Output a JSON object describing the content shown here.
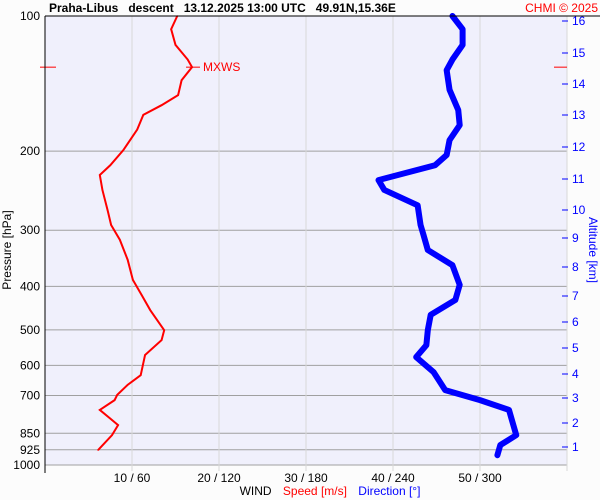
{
  "chart_data": {
    "type": "line",
    "title": "Praha-Libus   descent   13.12.2025 13:00 UTC   49.91N,15.36E",
    "copyright": "CHMI © 2025",
    "ylabel": "Pressure [hPa]",
    "y2label": "Altitude [km]",
    "xlabel_parts": [
      {
        "text": "WIND",
        "color": "#000000"
      },
      {
        "text": "Speed [m/s]",
        "color": "#ff0000"
      },
      {
        "text": "Direction [°]",
        "color": "#0000ff"
      }
    ],
    "yscale": "log",
    "ylim": [
      1000,
      100
    ],
    "xlim_speed": [
      0,
      60
    ],
    "xlim_direction": [
      0,
      360
    ],
    "y_ticks": [
      100,
      200,
      300,
      400,
      500,
      600,
      700,
      850,
      925,
      1000
    ],
    "x_ticks": [
      "10 / 60",
      "20 / 120",
      "30 / 180",
      "40 / 240",
      "50 / 300"
    ],
    "x_tick_speeds": [
      10,
      20,
      30,
      40,
      50
    ],
    "altitude_ticks": [
      "16",
      "15",
      "14",
      "13",
      "12",
      "11",
      "10",
      "9",
      "8",
      "7",
      "6",
      "5",
      "4",
      "3",
      "2",
      "1"
    ],
    "grid": true,
    "colors": {
      "background": "#f0f0fc",
      "speed": "#ff0000",
      "direction": "#0000ff",
      "grid": "#a0a0a0"
    },
    "annotation": {
      "text": "MXWS",
      "pressure": 130,
      "speed": 16.9
    },
    "series": [
      {
        "name": "Speed [m/s]",
        "color": "#ff0000",
        "points": [
          [
            100,
            15.2
          ],
          [
            107,
            14.5
          ],
          [
            116,
            15.0
          ],
          [
            125,
            16.4
          ],
          [
            130,
            16.9
          ],
          [
            139,
            15.7
          ],
          [
            150,
            15.3
          ],
          [
            158,
            13.4
          ],
          [
            166,
            11.3
          ],
          [
            179,
            10.6
          ],
          [
            199,
            9.0
          ],
          [
            215,
            7.5
          ],
          [
            226,
            6.3
          ],
          [
            244,
            6.6
          ],
          [
            271,
            7.2
          ],
          [
            292,
            7.6
          ],
          [
            315,
            8.6
          ],
          [
            349,
            9.5
          ],
          [
            387,
            10.1
          ],
          [
            418,
            11.1
          ],
          [
            452,
            12.1
          ],
          [
            501,
            13.7
          ],
          [
            527,
            13.4
          ],
          [
            569,
            11.5
          ],
          [
            631,
            11.0
          ],
          [
            663,
            9.5
          ],
          [
            698,
            8.3
          ],
          [
            717,
            8.0
          ],
          [
            754,
            6.3
          ],
          [
            794,
            7.7
          ],
          [
            815,
            8.4
          ],
          [
            858,
            7.7
          ],
          [
            926,
            6.1
          ]
        ]
      },
      {
        "name": "Direction [°]",
        "color": "#0000ff",
        "points": [
          [
            100,
            281
          ],
          [
            107,
            288
          ],
          [
            116,
            288
          ],
          [
            125,
            281
          ],
          [
            132,
            277
          ],
          [
            146,
            279
          ],
          [
            162,
            285
          ],
          [
            175,
            286
          ],
          [
            189,
            279
          ],
          [
            204,
            277
          ],
          [
            215,
            269
          ],
          [
            232,
            230
          ],
          [
            244,
            234
          ],
          [
            264,
            257
          ],
          [
            292,
            259
          ],
          [
            307,
            261
          ],
          [
            332,
            264
          ],
          [
            359,
            281
          ],
          [
            397,
            286
          ],
          [
            429,
            283
          ],
          [
            463,
            266
          ],
          [
            501,
            264
          ],
          [
            541,
            263
          ],
          [
            575,
            256
          ],
          [
            621,
            268
          ],
          [
            681,
            276
          ],
          [
            717,
            300
          ],
          [
            754,
            320
          ],
          [
            815,
            323
          ],
          [
            858,
            325
          ],
          [
            903,
            314
          ],
          [
            951,
            312
          ]
        ]
      }
    ]
  }
}
